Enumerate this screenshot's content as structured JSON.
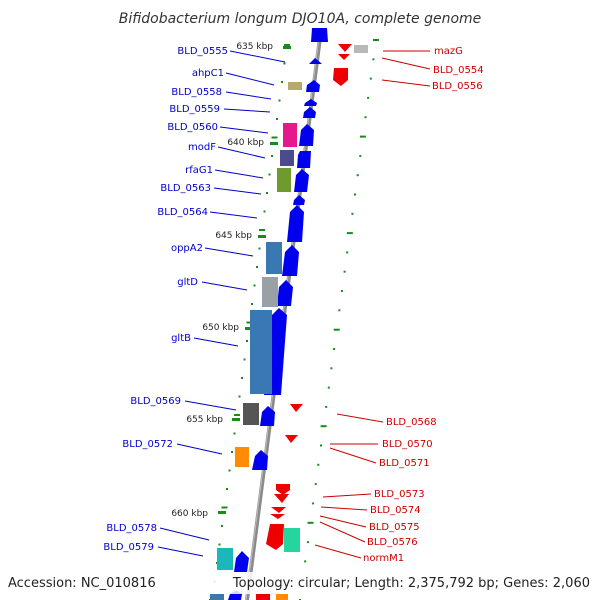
{
  "title": "Bifidobacterium longum DJO10A, complete genome",
  "footer": {
    "accession": "Accession: NC_010816",
    "topology": "Topology: circular; Length: 2,375,792 bp; Genes: 2,060"
  },
  "colors": {
    "forward_cds": "#0000ee",
    "reverse_cds": "#ee0000",
    "backbone": "#888888",
    "tick": "#1a8a1a",
    "label_forward": "#0000cc",
    "label_reverse": "#cc0000"
  },
  "ruler_labels": [
    "635 kbp",
    "640 kbp",
    "645 kbp",
    "650 kbp",
    "655 kbp",
    "660 kbp"
  ],
  "forward_genes": [
    "BLD_0555",
    "ahpC1",
    "BLD_0558",
    "BLD_0559",
    "BLD_0560",
    "modF",
    "rfaG1",
    "BLD_0563",
    "BLD_0564",
    "oppA2",
    "gltD",
    "gltB",
    "BLD_0569",
    "BLD_0572",
    "BLD_0578",
    "BLD_0579"
  ],
  "reverse_genes": [
    "mazG",
    "BLD_0554",
    "BLD_0556",
    "BLD_0568",
    "BLD_0570",
    "BLD_0571",
    "BLD_0573",
    "BLD_0574",
    "BLD_0575",
    "BLD_0576",
    "normM1"
  ],
  "domain_colors": [
    "#b6aa6a",
    "#e6188c",
    "#4e4a8e",
    "#6e9a2e",
    "#3a78b4",
    "#9aa0a6",
    "#555555",
    "#ff8c00",
    "#1ab8b8",
    "#22d69e"
  ]
}
